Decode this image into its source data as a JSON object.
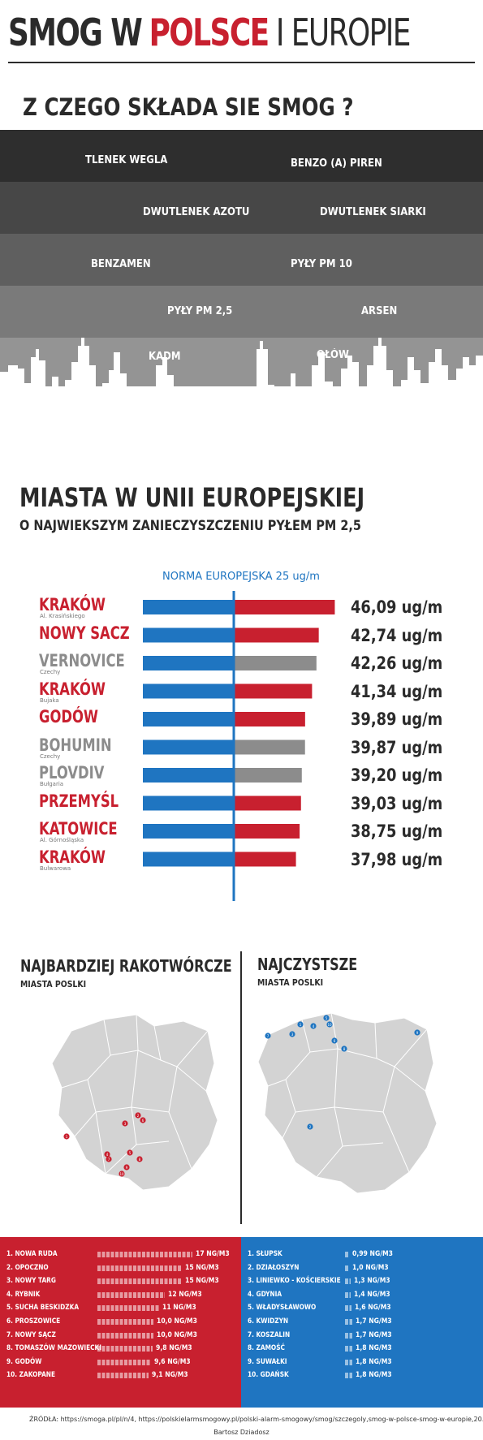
{
  "header": {
    "title_part1": "SMOG W",
    "title_part2": "POLSCE",
    "title_part3": "I EUROPIE",
    "smog_heading": "Z CZEGO SKŁADA SIE SMOG ?"
  },
  "smog_components": [
    {
      "left": "TLENEK WEGLA",
      "right": "BENZO (A) PIREN"
    },
    {
      "left": "DWUTLENEK AZOTU",
      "right": "DWUTLENEK SIARKI"
    },
    {
      "left": "BENZAMEN",
      "right": "PYŁY PM 10"
    },
    {
      "left": "PYŁY PM 2,5",
      "right": "ARSEN"
    },
    {
      "left": "KADM",
      "right": "OŁÓW"
    }
  ],
  "colors": {
    "red": "#c8202f",
    "blue": "#1f75c1",
    "gray": "#8c8c8c",
    "dark": "#2b2b2b",
    "bands": [
      "#2e2e2e",
      "#474747",
      "#5f5f5f",
      "#7a7a7a",
      "#949494"
    ]
  },
  "eu_section": {
    "heading": "MIASTA W UNII EUROPEJSKIEJ",
    "subheading": "O NAJWIEKSZYM ZANIECZYSZCZENIU PYŁEM PM 2,5",
    "norm_label": "NORMA EUROPEJSKA 25 ug/m"
  },
  "chart_data": {
    "type": "bar",
    "unit": "ug/m",
    "reference_value": 25,
    "categories": [
      "KRAKÓW",
      "NOWY SACZ",
      "VERNOVICE",
      "KRAKÓW",
      "GODÓW",
      "BOHUMIN",
      "PLOVDIV",
      "PRZEMYŚL",
      "KATOWICE",
      "KRAKÓW"
    ],
    "sublabels": [
      "Al. Krasińskiego",
      "",
      "Czechy",
      "Bujaka",
      "",
      "Czechy",
      "Bułgaria",
      "",
      "Al. Górnośląska",
      "Bulwarowa"
    ],
    "country": [
      "PL",
      "PL",
      "CZ",
      "PL",
      "PL",
      "CZ",
      "BG",
      "PL",
      "PL",
      "PL"
    ],
    "values": [
      46.09,
      42.74,
      42.26,
      41.34,
      39.89,
      39.87,
      39.2,
      39.03,
      38.75,
      37.98
    ],
    "value_labels": [
      "46,09 ug/m",
      "42,74 ug/m",
      "42,26 ug/m",
      "41,34 ug/m",
      "39,89 ug/m",
      "39,87 ug/m",
      "39,20 ug/m",
      "39,03 ug/m",
      "38,75 ug/m",
      "37,98 ug/m"
    ]
  },
  "poland_section": {
    "left_title": "NAJBARDZIEJ RAKOTWÓRCZE",
    "left_sub": "MIASTA POSLKI",
    "right_title": "NAJCZYSTSZE",
    "right_sub": "MIASTA POSLKI"
  },
  "map_markers_dirty": [
    "1",
    "2",
    "3",
    "4",
    "5",
    "6",
    "7",
    "8",
    "9",
    "10"
  ],
  "map_markers_clean": [
    "1",
    "2",
    "3",
    "4",
    "5",
    "6",
    "7",
    "8",
    "9",
    "10"
  ],
  "most_polluted": [
    {
      "name": "1. NOWA RUDA",
      "value": 17,
      "label": "17 NG/M3"
    },
    {
      "name": "2. OPOCZNO",
      "value": 15,
      "label": "15 NG/M3"
    },
    {
      "name": "3. NOWY TARG",
      "value": 15,
      "label": "15 NG/M3"
    },
    {
      "name": "4. RYBNIK",
      "value": 12,
      "label": "12 NG/M3"
    },
    {
      "name": "5. SUCHA BESKIDZKA",
      "value": 11,
      "label": "11 NG/M3"
    },
    {
      "name": "6. PROSZOWICE",
      "value": 10,
      "label": "10,0 NG/M3"
    },
    {
      "name": "7. NOWY SĄCZ",
      "value": 10,
      "label": "10,0 NG/M3"
    },
    {
      "name": "8. TOMASZÓW MAZOWIECKI",
      "value": 9.8,
      "label": "9,8 NG/M3"
    },
    {
      "name": "9. GODÓW",
      "value": 9.6,
      "label": "9,6 NG/M3"
    },
    {
      "name": "10. ZAKOPANE",
      "value": 9.1,
      "label": "9,1 NG/M3"
    }
  ],
  "cleanest": [
    {
      "name": "1. SŁUPSK",
      "value": 0.99,
      "label": "0,99 NG/M3"
    },
    {
      "name": "2. DZIAŁOSZYN",
      "value": 1.0,
      "label": "1,0 NG/M3"
    },
    {
      "name": "3. LINIEWKO - KOŚCIERSKIE",
      "value": 1.3,
      "label": "1,3 NG/M3"
    },
    {
      "name": "4. GDYNIA",
      "value": 1.4,
      "label": "1,4 NG/M3"
    },
    {
      "name": "5. WŁADYSŁAWOWO",
      "value": 1.6,
      "label": "1,6 NG/M3"
    },
    {
      "name": "6. KWIDZYN",
      "value": 1.7,
      "label": "1,7 NG/M3"
    },
    {
      "name": "7. KOSZALIN",
      "value": 1.7,
      "label": "1,7 NG/M3"
    },
    {
      "name": "8. ZAMOŚĆ",
      "value": 1.8,
      "label": "1,8 NG/M3"
    },
    {
      "name": "9. SUWAŁKI",
      "value": 1.8,
      "label": "1,8 NG/M3"
    },
    {
      "name": "10. GDAŃSK",
      "value": 1.8,
      "label": "1,8 NG/M3"
    }
  ],
  "footer": {
    "sources": "ŹRÓDŁA: https://smoga.pl/pl/n/4, https://polskielarmsmogowy.pl/polski-alarm-smogowy/smog/szczegoly,smog-w-polsce-smog-w-europie,20.html",
    "author": "Bartosz Dziadosz"
  }
}
